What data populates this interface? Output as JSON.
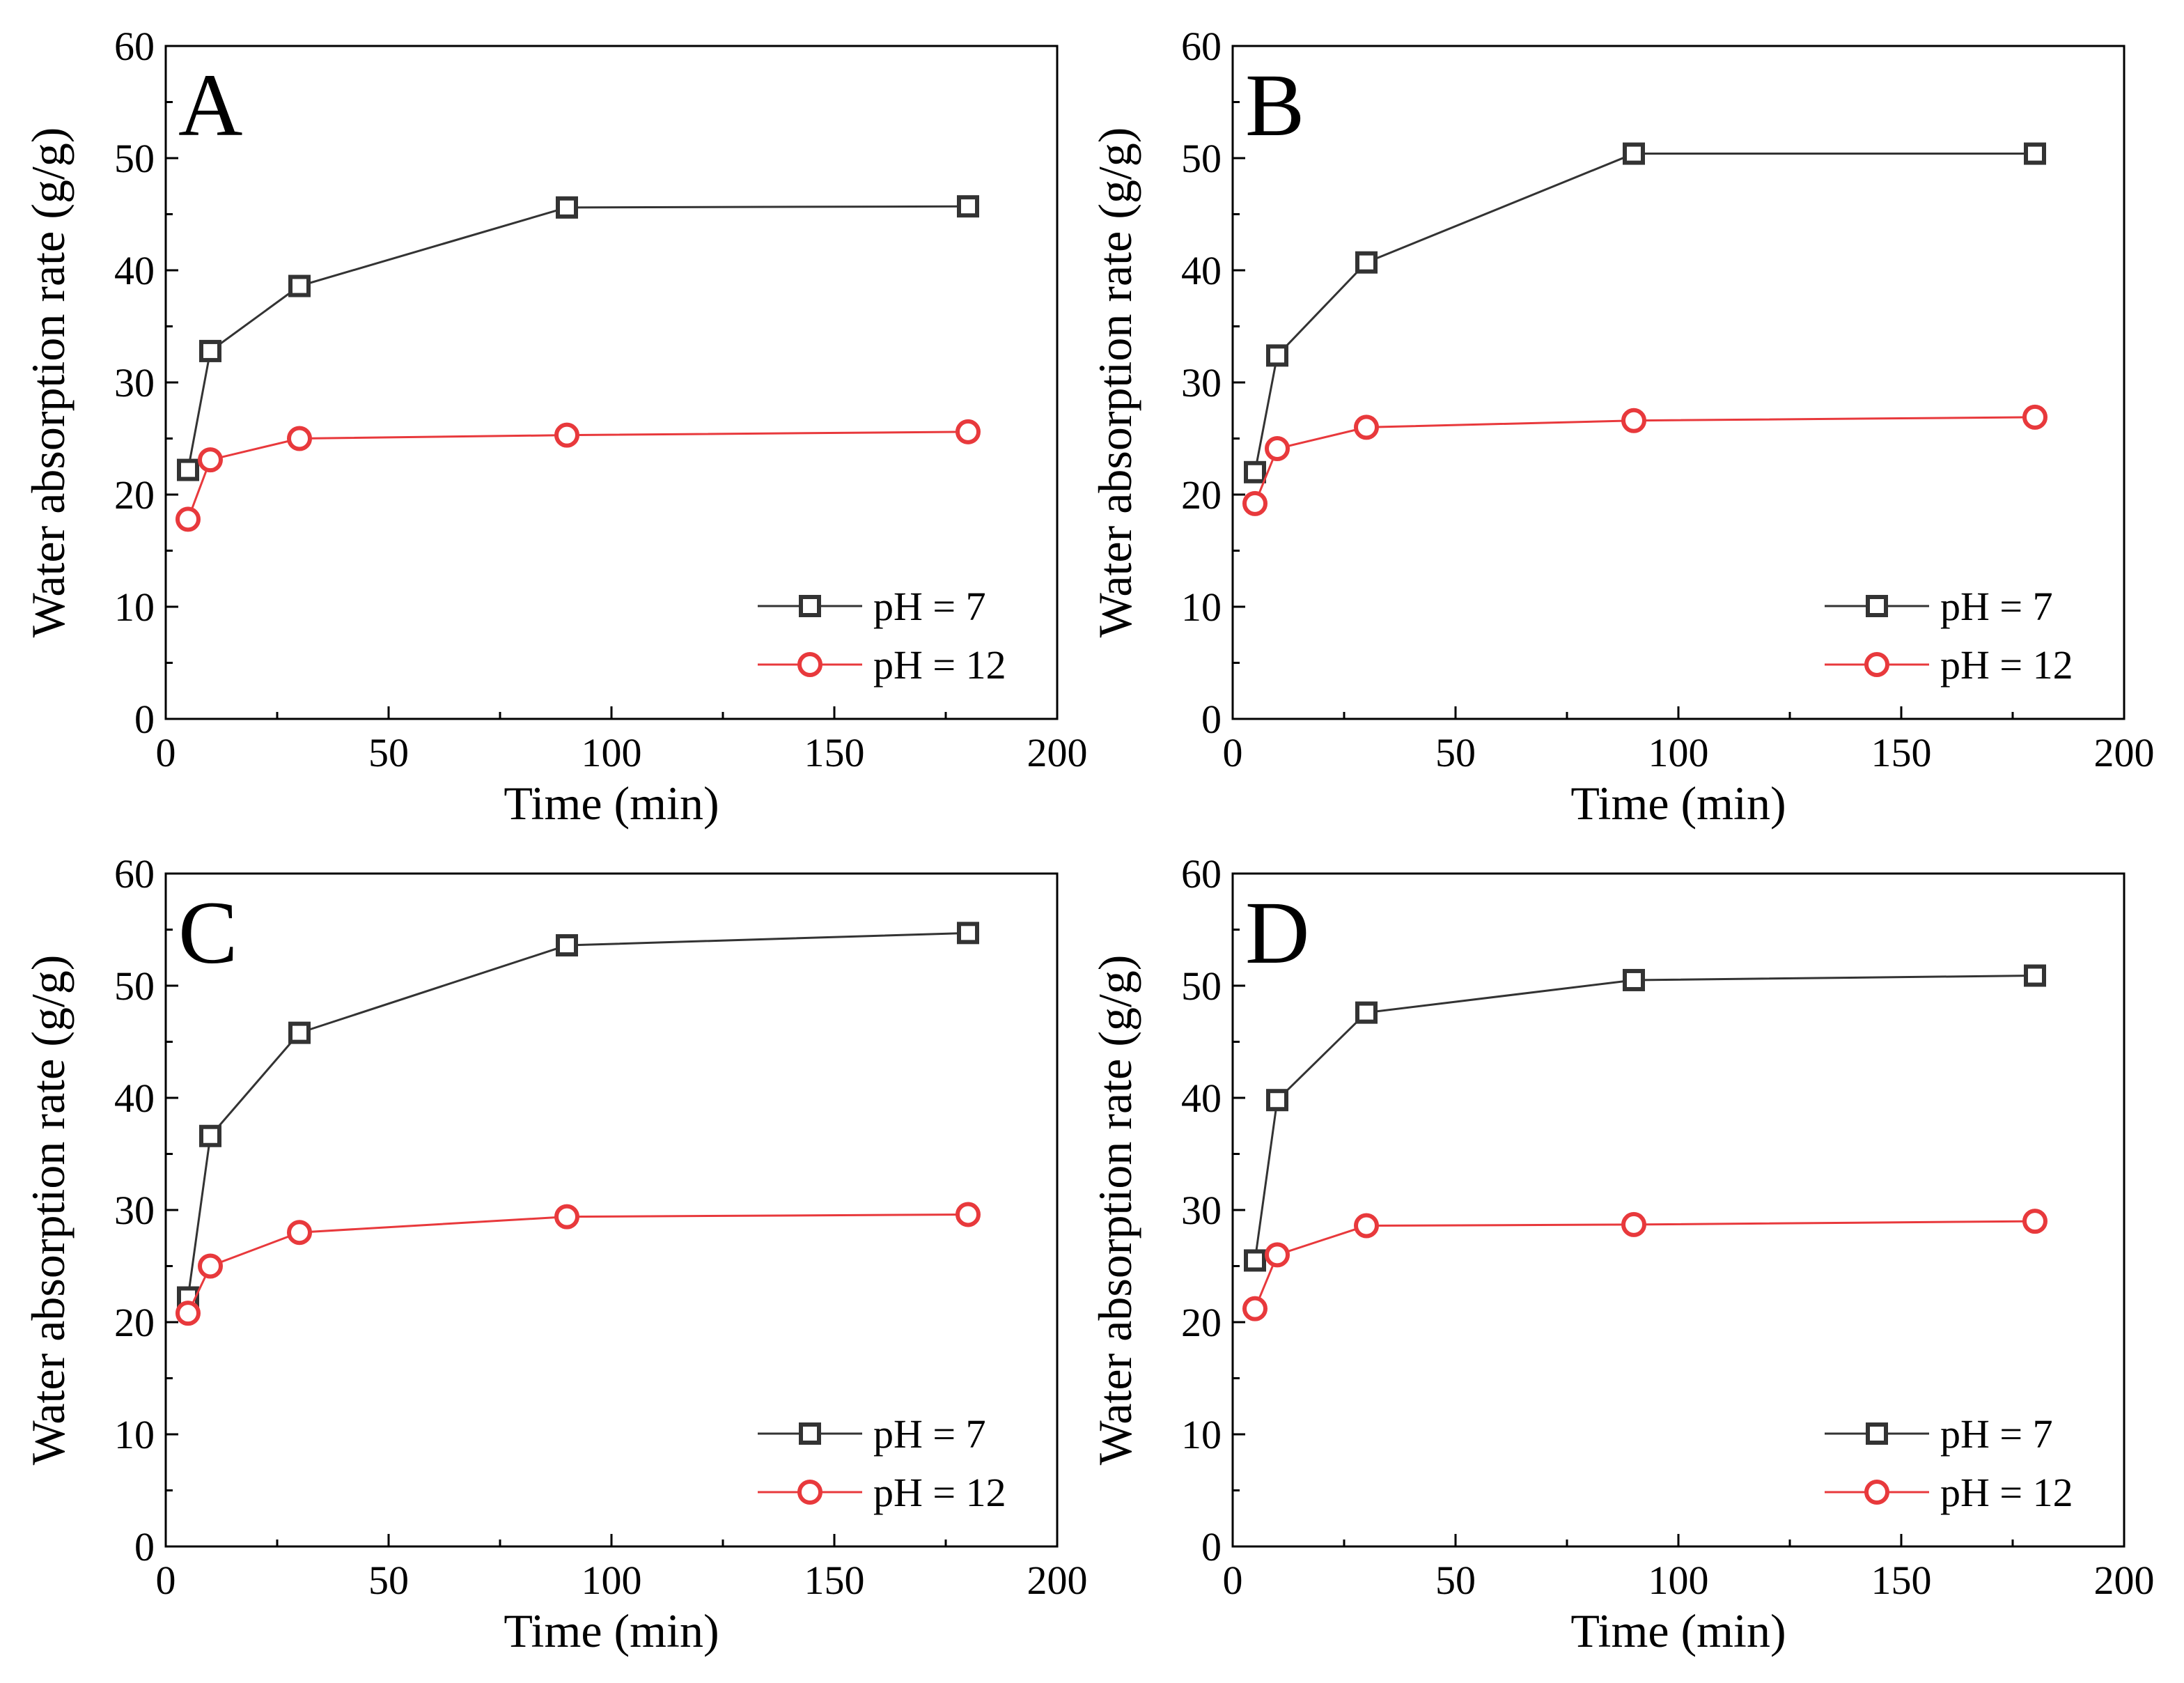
{
  "colors": {
    "ph7": "#333333",
    "ph12": "#e8393c",
    "axis": "#000000",
    "background": "#ffffff"
  },
  "chart_data": [
    {
      "type": "line",
      "panel": "A",
      "xlabel": "Time (min)",
      "ylabel": "Water absorption rate (g/g)",
      "xlim": [
        0,
        200
      ],
      "ylim": [
        0,
        60
      ],
      "xticks": [
        0,
        50,
        100,
        150,
        200
      ],
      "yticks": [
        0,
        10,
        20,
        30,
        40,
        50,
        60
      ],
      "legend_position": "bottom-right",
      "grid": false,
      "series": [
        {
          "name": "pH = 7",
          "marker": "square",
          "x": [
            5,
            10,
            30,
            90,
            180
          ],
          "values": [
            22.2,
            32.8,
            38.6,
            45.6,
            45.7
          ]
        },
        {
          "name": "pH = 12",
          "marker": "circle",
          "x": [
            5,
            10,
            30,
            90,
            180
          ],
          "values": [
            17.8,
            23.1,
            25.0,
            25.3,
            25.6
          ]
        }
      ]
    },
    {
      "type": "line",
      "panel": "B",
      "xlabel": "Time (min)",
      "ylabel": "Water absorption rate (g/g)",
      "xlim": [
        0,
        200
      ],
      "ylim": [
        0,
        60
      ],
      "xticks": [
        0,
        50,
        100,
        150,
        200
      ],
      "yticks": [
        0,
        10,
        20,
        30,
        40,
        50,
        60
      ],
      "legend_position": "bottom-right",
      "grid": false,
      "series": [
        {
          "name": "pH = 7",
          "marker": "square",
          "x": [
            5,
            10,
            30,
            90,
            180
          ],
          "values": [
            22.0,
            32.4,
            40.7,
            50.4,
            50.4
          ]
        },
        {
          "name": "pH = 12",
          "marker": "circle",
          "x": [
            5,
            10,
            30,
            90,
            180
          ],
          "values": [
            19.2,
            24.1,
            26.0,
            26.6,
            26.9
          ]
        }
      ]
    },
    {
      "type": "line",
      "panel": "C",
      "xlabel": "Time (min)",
      "ylabel": "Water absorption rate (g/g)",
      "xlim": [
        0,
        200
      ],
      "ylim": [
        0,
        60
      ],
      "xticks": [
        0,
        50,
        100,
        150,
        200
      ],
      "yticks": [
        0,
        10,
        20,
        30,
        40,
        50,
        60
      ],
      "legend_position": "bottom-right",
      "grid": false,
      "series": [
        {
          "name": "pH = 7",
          "marker": "square",
          "x": [
            5,
            10,
            30,
            90,
            180
          ],
          "values": [
            22.2,
            36.6,
            45.8,
            53.6,
            54.7
          ]
        },
        {
          "name": "pH = 12",
          "marker": "circle",
          "x": [
            5,
            10,
            30,
            90,
            180
          ],
          "values": [
            20.8,
            25.0,
            28.0,
            29.4,
            29.6
          ]
        }
      ]
    },
    {
      "type": "line",
      "panel": "D",
      "xlabel": "Time (min)",
      "ylabel": "Water absorption rate (g/g)",
      "xlim": [
        0,
        200
      ],
      "ylim": [
        0,
        60
      ],
      "xticks": [
        0,
        50,
        100,
        150,
        200
      ],
      "yticks": [
        0,
        10,
        20,
        30,
        40,
        50,
        60
      ],
      "legend_position": "bottom-right",
      "grid": false,
      "series": [
        {
          "name": "pH = 7",
          "marker": "square",
          "x": [
            5,
            10,
            30,
            90,
            180
          ],
          "values": [
            25.5,
            39.8,
            47.6,
            50.5,
            50.9
          ]
        },
        {
          "name": "pH = 12",
          "marker": "circle",
          "x": [
            5,
            10,
            30,
            90,
            180
          ],
          "values": [
            21.2,
            26.0,
            28.6,
            28.7,
            29.0
          ]
        }
      ]
    }
  ]
}
